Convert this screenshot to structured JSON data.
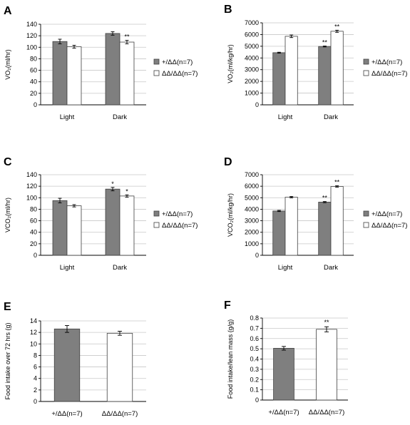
{
  "colors": {
    "wt": "#7f7f7f",
    "ko": "#ffffff",
    "stroke": "#404040"
  },
  "chart_data": [
    {
      "letter": "A",
      "type": "bar",
      "ylabel": "VO₂(ml/hr)",
      "ylim": [
        0,
        140
      ],
      "yticks": [
        0,
        20,
        40,
        60,
        80,
        100,
        120,
        140
      ],
      "categories": [
        "Light",
        "Dark"
      ],
      "series": [
        {
          "name": "+/ΔΔ(n=7)",
          "values": [
            110,
            124
          ],
          "errors": [
            4,
            3
          ]
        },
        {
          "name": "ΔΔ/ΔΔ(n=7)",
          "values": [
            101,
            109
          ],
          "errors": [
            2.5,
            3
          ]
        }
      ],
      "significance": [
        [
          "",
          ""
        ],
        [
          "",
          "**"
        ]
      ],
      "legend": "right"
    },
    {
      "letter": "B",
      "type": "bar",
      "ylabel": "VO₂(ml/kg/hr)",
      "ylim": [
        0,
        7000
      ],
      "yticks": [
        0,
        1000,
        2000,
        3000,
        4000,
        5000,
        6000,
        7000
      ],
      "categories": [
        "Light",
        "Dark"
      ],
      "series": [
        {
          "name": "+/ΔΔ(n=7)",
          "values": [
            4450,
            4980
          ],
          "errors": [
            40,
            40
          ]
        },
        {
          "name": "ΔΔ/ΔΔ(n=7)",
          "values": [
            5850,
            6280
          ],
          "errors": [
            110,
            90
          ]
        }
      ],
      "significance": [
        [
          "",
          "**"
        ],
        [
          "",
          "**"
        ]
      ],
      "legend": "right"
    },
    {
      "letter": "C",
      "type": "bar",
      "ylabel": "VCO₂(ml/hr)",
      "ylim": [
        0,
        140
      ],
      "yticks": [
        0,
        20,
        40,
        60,
        80,
        100,
        120,
        140
      ],
      "categories": [
        "Light",
        "Dark"
      ],
      "series": [
        {
          "name": "+/ΔΔ(n=7)",
          "values": [
            95,
            115
          ],
          "errors": [
            4,
            3
          ]
        },
        {
          "name": "ΔΔ/ΔΔ(n=7)",
          "values": [
            86,
            103
          ],
          "errors": [
            2,
            2
          ]
        }
      ],
      "significance": [
        [
          "",
          "*"
        ],
        [
          "",
          "*"
        ]
      ],
      "legend": "right"
    },
    {
      "letter": "D",
      "type": "bar",
      "ylabel": "VCO₂(ml/kg/hr)",
      "ylim": [
        0,
        7000
      ],
      "yticks": [
        0,
        1000,
        2000,
        3000,
        4000,
        5000,
        6000,
        7000
      ],
      "categories": [
        "Light",
        "Dark"
      ],
      "series": [
        {
          "name": "+/ΔΔ(n=7)",
          "values": [
            3850,
            4620
          ],
          "errors": [
            50,
            50
          ]
        },
        {
          "name": "ΔΔ/ΔΔ(n=7)",
          "values": [
            5050,
            5980
          ],
          "errors": [
            60,
            60
          ]
        }
      ],
      "significance": [
        [
          "",
          "**"
        ],
        [
          "",
          "**"
        ]
      ],
      "legend": "right"
    },
    {
      "letter": "E",
      "type": "bar",
      "ylabel": "Food intake over 72 hrs (g)",
      "ylim": [
        0,
        14
      ],
      "yticks": [
        0,
        2,
        4,
        6,
        8,
        10,
        12,
        14
      ],
      "categories": [
        "+/ΔΔ(n=7)",
        "ΔΔ/ΔΔ(n=7)"
      ],
      "values": [
        12.6,
        11.85
      ],
      "errors": [
        0.6,
        0.35
      ],
      "significance": [
        "",
        ""
      ]
    },
    {
      "letter": "F",
      "type": "bar",
      "ylabel": "Food intake/lean mass (g/g)",
      "ylim": [
        0,
        0.8
      ],
      "yticks": [
        "0",
        "0.1",
        "0.2",
        "0.3",
        "0.4",
        "0.5",
        "0.6",
        "0.7",
        "0.8"
      ],
      "categories": [
        "+/ΔΔ(n=7)",
        "ΔΔ/ΔΔ(n=7)"
      ],
      "values": [
        0.505,
        0.69
      ],
      "errors": [
        0.018,
        0.025
      ],
      "significance": [
        "",
        "**"
      ]
    }
  ]
}
